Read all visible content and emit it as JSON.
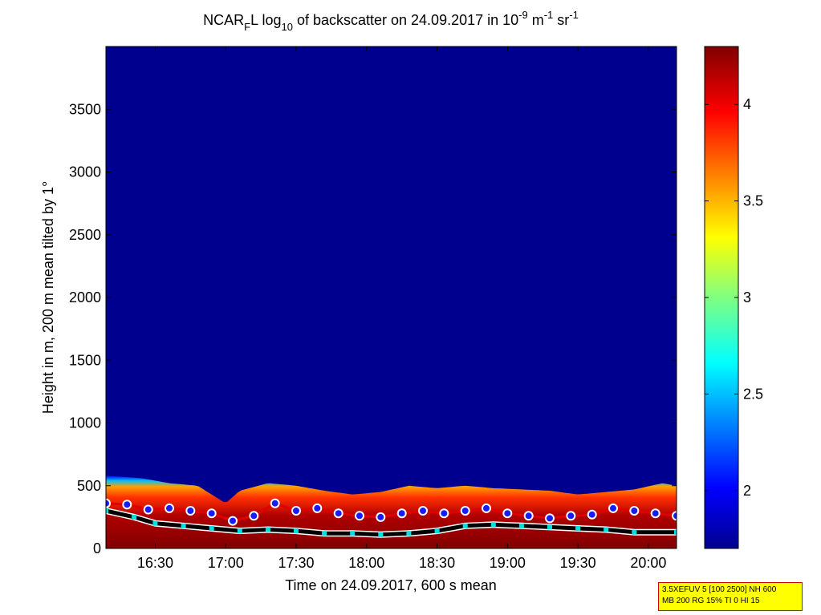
{
  "title": {
    "lead": "NCAR",
    "sub1": "F",
    "mid": "L log",
    "sub2": "10",
    "tail": " of backscatter on 24.09.2017 in 10",
    "sup1": "-9",
    "unit1": " m",
    "sup2": "-1",
    "unit2": " sr",
    "sup3": "-1"
  },
  "info_box": {
    "line1": "3.5XEFUV 5 [100 2500] NH 600",
    "line2": "MB 200 RG 15% TI 0 HI 15"
  },
  "colors": {
    "background": "#00008f",
    "axis": "#000000",
    "layer_outline_red": "#e00000",
    "layer_marker_blue": "#1a1aff",
    "boundary_black": "#000000",
    "boundary_cyan": "#00e0e0"
  },
  "chart_data": {
    "type": "heatmap",
    "xlabel": "Time on 24.09.2017, 600 s mean",
    "ylabel": "Height in m, 200 m mean tilted by 1°",
    "x_ticks": [
      "16:30",
      "17:00",
      "17:30",
      "18:00",
      "18:30",
      "19:00",
      "19:30",
      "20:00"
    ],
    "x_tick_hours": [
      16.5,
      17.0,
      17.5,
      18.0,
      18.5,
      19.0,
      19.5,
      20.0
    ],
    "xlim_hours": [
      16.15,
      20.2
    ],
    "y_ticks": [
      0,
      500,
      1000,
      1500,
      2000,
      2500,
      3000,
      3500
    ],
    "ylim": [
      0,
      4000
    ],
    "colorbar": {
      "ticks": [
        2,
        2.5,
        3,
        3.5,
        4
      ],
      "range": [
        1.7,
        4.3
      ],
      "colormap": "jet"
    },
    "aerosol_layer_top_m": {
      "hours": [
        16.15,
        16.4,
        16.6,
        16.8,
        17.0,
        17.1,
        17.3,
        17.5,
        17.7,
        17.9,
        18.1,
        18.3,
        18.5,
        18.7,
        18.9,
        19.1,
        19.3,
        19.5,
        19.7,
        19.9,
        20.1,
        20.2
      ],
      "values": [
        580,
        560,
        520,
        500,
        360,
        460,
        520,
        500,
        460,
        430,
        450,
        500,
        480,
        500,
        480,
        470,
        460,
        430,
        450,
        470,
        520,
        500
      ]
    },
    "cloud_marker_height_m": {
      "hours": [
        16.15,
        16.3,
        16.45,
        16.6,
        16.75,
        16.9,
        17.05,
        17.2,
        17.35,
        17.5,
        17.65,
        17.8,
        17.95,
        18.1,
        18.25,
        18.4,
        18.55,
        18.7,
        18.85,
        19.0,
        19.15,
        19.3,
        19.45,
        19.6,
        19.75,
        19.9,
        20.05,
        20.2
      ],
      "values": [
        360,
        350,
        310,
        320,
        300,
        280,
        220,
        260,
        360,
        300,
        320,
        280,
        260,
        250,
        280,
        300,
        280,
        300,
        320,
        280,
        260,
        240,
        260,
        270,
        320,
        300,
        280,
        260
      ]
    },
    "mixing_layer_height_m": {
      "hours": [
        16.15,
        16.35,
        16.5,
        16.7,
        16.9,
        17.1,
        17.3,
        17.5,
        17.7,
        17.9,
        18.1,
        18.3,
        18.5,
        18.7,
        18.9,
        19.1,
        19.3,
        19.5,
        19.7,
        19.9,
        20.2
      ],
      "values": [
        300,
        250,
        200,
        180,
        160,
        140,
        150,
        140,
        120,
        120,
        110,
        120,
        140,
        180,
        190,
        180,
        170,
        160,
        150,
        130,
        130
      ]
    }
  }
}
